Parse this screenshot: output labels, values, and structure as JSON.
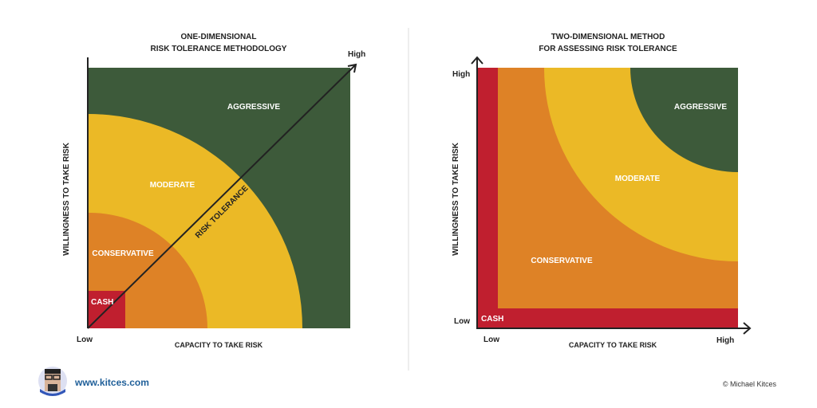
{
  "left": {
    "title1": "ONE-DIMENSIONAL",
    "title2": "RISK TOLERANCE METHODOLOGY",
    "ylabel": "WILLINGNESS TO TAKE RISK",
    "xlabel": "CAPACITY TO TAKE RISK",
    "low": "Low",
    "high": "High",
    "diagonal": "RISK TOLERANCE",
    "zones": {
      "aggressive": "AGGRESSIVE",
      "moderate": "MODERATE",
      "conservative": "CONSERVATIVE",
      "cash": "CASH"
    }
  },
  "right": {
    "title1": "TWO-DIMENSIONAL METHOD",
    "title2": "FOR ASSESSING RISK TOLERANCE",
    "ylabel": "WILLINGNESS TO TAKE RISK",
    "xlabel": "CAPACITY TO TAKE RISK",
    "y_high": "High",
    "y_low": "Low",
    "x_low": "Low",
    "x_high": "High",
    "zones": {
      "aggressive": "AGGRESSIVE",
      "moderate": "MODERATE",
      "conservative": "CONSERVATIVE",
      "cash": "CASH"
    }
  },
  "colors": {
    "aggressive": "#3d5a3a",
    "moderate": "#ebb926",
    "conservative": "#de8226",
    "cash": "#c01f2f"
  },
  "footer": {
    "url": "www.kitces.com",
    "copyright": "© Michael Kitces"
  }
}
